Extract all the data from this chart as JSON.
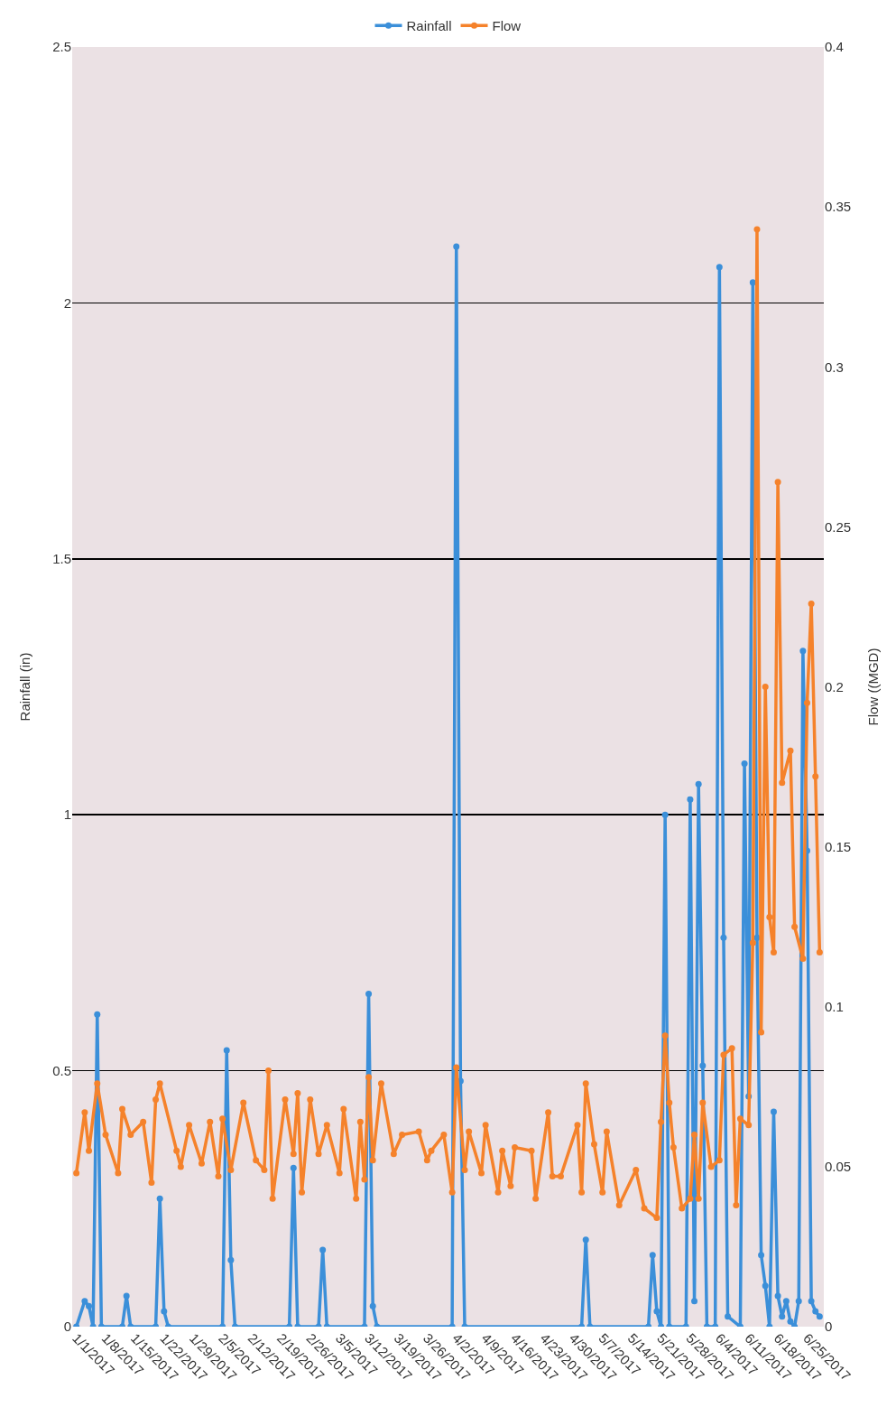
{
  "chart_data": {
    "type": "line",
    "ylabel": "Rainfall (in)",
    "y2label": "Flow ((MGD)",
    "xlim": [
      "2016-12-31",
      "2017-06-29"
    ],
    "xticks": [
      {
        "value": "2017-01-01",
        "label": "1/1/2017"
      },
      {
        "value": "2017-01-08",
        "label": "1/8/2017"
      },
      {
        "value": "2017-01-15",
        "label": "1/15/2017"
      },
      {
        "value": "2017-01-22",
        "label": "1/22/2017"
      },
      {
        "value": "2017-01-29",
        "label": "1/29/2017"
      },
      {
        "value": "2017-02-05",
        "label": "2/5/2017"
      },
      {
        "value": "2017-02-12",
        "label": "2/12/2017"
      },
      {
        "value": "2017-02-19",
        "label": "2/19/2017"
      },
      {
        "value": "2017-02-26",
        "label": "2/26/2017"
      },
      {
        "value": "2017-03-05",
        "label": "3/5/2017"
      },
      {
        "value": "2017-03-12",
        "label": "3/12/2017"
      },
      {
        "value": "2017-03-19",
        "label": "3/19/2017"
      },
      {
        "value": "2017-03-26",
        "label": "3/26/2017"
      },
      {
        "value": "2017-04-02",
        "label": "4/2/2017"
      },
      {
        "value": "2017-04-09",
        "label": "4/9/2017"
      },
      {
        "value": "2017-04-16",
        "label": "4/16/2017"
      },
      {
        "value": "2017-04-23",
        "label": "4/23/2017"
      },
      {
        "value": "2017-04-30",
        "label": "4/30/2017"
      },
      {
        "value": "2017-05-07",
        "label": "5/7/2017"
      },
      {
        "value": "2017-05-14",
        "label": "5/14/2017"
      },
      {
        "value": "2017-05-21",
        "label": "5/21/2017"
      },
      {
        "value": "2017-05-28",
        "label": "5/28/2017"
      },
      {
        "value": "2017-06-04",
        "label": "6/4/2017"
      },
      {
        "value": "2017-06-11",
        "label": "6/11/2017"
      },
      {
        "value": "2017-06-18",
        "label": "6/18/2017"
      },
      {
        "value": "2017-06-25",
        "label": "6/25/2017"
      }
    ],
    "ylim": [
      0,
      2.5
    ],
    "yticks": [
      0,
      0.5,
      1,
      1.5,
      2,
      2.5
    ],
    "y2lim": [
      0,
      0.4
    ],
    "y2ticks": [
      0,
      0.05,
      0.1,
      0.15,
      0.2,
      0.25,
      0.3,
      0.35,
      0.4
    ],
    "grid": "y",
    "legend": "top",
    "marker": "circle",
    "line_style": "solid",
    "series": [
      {
        "name": "Rainfall",
        "color": "#3b8fd9",
        "x": [
          "2017-01-01",
          "2017-01-03",
          "2017-01-04",
          "2017-01-05",
          "2017-01-06",
          "2017-01-07",
          "2017-01-12",
          "2017-01-13",
          "2017-01-14",
          "2017-01-20",
          "2017-01-21",
          "2017-01-22",
          "2017-01-23",
          "2017-02-05",
          "2017-02-06",
          "2017-02-07",
          "2017-02-08",
          "2017-02-21",
          "2017-02-22",
          "2017-02-23",
          "2017-02-28",
          "2017-03-01",
          "2017-03-02",
          "2017-03-11",
          "2017-03-12",
          "2017-03-13",
          "2017-03-14",
          "2017-04-01",
          "2017-04-02",
          "2017-04-03",
          "2017-04-04",
          "2017-05-02",
          "2017-05-03",
          "2017-05-04",
          "2017-05-18",
          "2017-05-19",
          "2017-05-20",
          "2017-05-21",
          "2017-05-22",
          "2017-05-23",
          "2017-05-27",
          "2017-05-28",
          "2017-05-29",
          "2017-05-30",
          "2017-05-31",
          "2017-06-01",
          "2017-06-03",
          "2017-06-04",
          "2017-06-05",
          "2017-06-06",
          "2017-06-09",
          "2017-06-10",
          "2017-06-11",
          "2017-06-12",
          "2017-06-13",
          "2017-06-14",
          "2017-06-15",
          "2017-06-16",
          "2017-06-17",
          "2017-06-18",
          "2017-06-19",
          "2017-06-20",
          "2017-06-21",
          "2017-06-22",
          "2017-06-23",
          "2017-06-24",
          "2017-06-25",
          "2017-06-26",
          "2017-06-27",
          "2017-06-28"
        ],
        "values": [
          0,
          0.05,
          0.04,
          0,
          0.61,
          0,
          0,
          0.06,
          0,
          0,
          0.25,
          0.03,
          0,
          0,
          0.54,
          0.13,
          0,
          0,
          0.31,
          0,
          0,
          0.15,
          0,
          0,
          0.65,
          0.04,
          0,
          0,
          2.11,
          0.48,
          0,
          0,
          0.17,
          0,
          0,
          0.14,
          0.03,
          0,
          1.0,
          0,
          0,
          1.03,
          0.05,
          1.06,
          0.51,
          0,
          0,
          2.07,
          0.76,
          0.02,
          0,
          1.1,
          0.45,
          2.04,
          0.76,
          0.14,
          0.08,
          0,
          0.42,
          0.06,
          0.02,
          0.05,
          0.01,
          0,
          0.05,
          1.32,
          0.93,
          0.05,
          0.03,
          0.02
        ]
      },
      {
        "name": "Flow",
        "color": "#f5822b",
        "axis": "y2",
        "x": [
          "2017-01-01",
          "2017-01-03",
          "2017-01-04",
          "2017-01-06",
          "2017-01-08",
          "2017-01-11",
          "2017-01-12",
          "2017-01-14",
          "2017-01-17",
          "2017-01-19",
          "2017-01-20",
          "2017-01-21",
          "2017-01-25",
          "2017-01-26",
          "2017-01-28",
          "2017-01-31",
          "2017-02-02",
          "2017-02-04",
          "2017-02-05",
          "2017-02-07",
          "2017-02-10",
          "2017-02-13",
          "2017-02-15",
          "2017-02-16",
          "2017-02-17",
          "2017-02-20",
          "2017-02-22",
          "2017-02-23",
          "2017-02-24",
          "2017-02-26",
          "2017-02-28",
          "2017-03-02",
          "2017-03-05",
          "2017-03-06",
          "2017-03-09",
          "2017-03-10",
          "2017-03-11",
          "2017-03-12",
          "2017-03-13",
          "2017-03-15",
          "2017-03-18",
          "2017-03-20",
          "2017-03-24",
          "2017-03-26",
          "2017-03-27",
          "2017-03-30",
          "2017-04-01",
          "2017-04-02",
          "2017-04-04",
          "2017-04-05",
          "2017-04-08",
          "2017-04-09",
          "2017-04-12",
          "2017-04-13",
          "2017-04-15",
          "2017-04-16",
          "2017-04-20",
          "2017-04-21",
          "2017-04-24",
          "2017-04-25",
          "2017-04-27",
          "2017-05-01",
          "2017-05-02",
          "2017-05-03",
          "2017-05-05",
          "2017-05-07",
          "2017-05-08",
          "2017-05-11",
          "2017-05-15",
          "2017-05-17",
          "2017-05-20",
          "2017-05-21",
          "2017-05-22",
          "2017-05-23",
          "2017-05-24",
          "2017-05-26",
          "2017-05-28",
          "2017-05-29",
          "2017-05-30",
          "2017-05-31",
          "2017-06-02",
          "2017-06-04",
          "2017-06-05",
          "2017-06-07",
          "2017-06-08",
          "2017-06-09",
          "2017-06-11",
          "2017-06-12",
          "2017-06-13",
          "2017-06-14",
          "2017-06-15",
          "2017-06-16",
          "2017-06-17",
          "2017-06-18",
          "2017-06-19",
          "2017-06-21",
          "2017-06-22",
          "2017-06-24",
          "2017-06-25",
          "2017-06-26",
          "2017-06-27",
          "2017-06-28"
        ],
        "values": [
          0.048,
          0.067,
          0.055,
          0.076,
          0.06,
          0.048,
          0.068,
          0.06,
          0.064,
          0.045,
          0.071,
          0.076,
          0.055,
          0.05,
          0.063,
          0.051,
          0.064,
          0.047,
          0.065,
          0.049,
          0.07,
          0.052,
          0.049,
          0.08,
          0.04,
          0.071,
          0.054,
          0.073,
          0.042,
          0.071,
          0.054,
          0.063,
          0.048,
          0.068,
          0.04,
          0.064,
          0.046,
          0.078,
          0.052,
          0.076,
          0.054,
          0.06,
          0.061,
          0.052,
          0.055,
          0.06,
          0.042,
          0.081,
          0.049,
          0.061,
          0.048,
          0.063,
          0.042,
          0.055,
          0.044,
          0.056,
          0.055,
          0.04,
          0.067,
          0.047,
          0.047,
          0.063,
          0.042,
          0.076,
          0.057,
          0.042,
          0.061,
          0.038,
          0.049,
          0.037,
          0.034,
          0.064,
          0.091,
          0.07,
          0.056,
          0.037,
          0.04,
          0.06,
          0.04,
          0.07,
          0.05,
          0.052,
          0.085,
          0.087,
          0.038,
          0.065,
          0.063,
          0.12,
          0.343,
          0.092,
          0.2,
          0.128,
          0.117,
          0.264,
          0.17,
          0.18,
          0.125,
          0.115,
          0.195,
          0.226,
          0.172,
          0.117
        ]
      }
    ]
  }
}
